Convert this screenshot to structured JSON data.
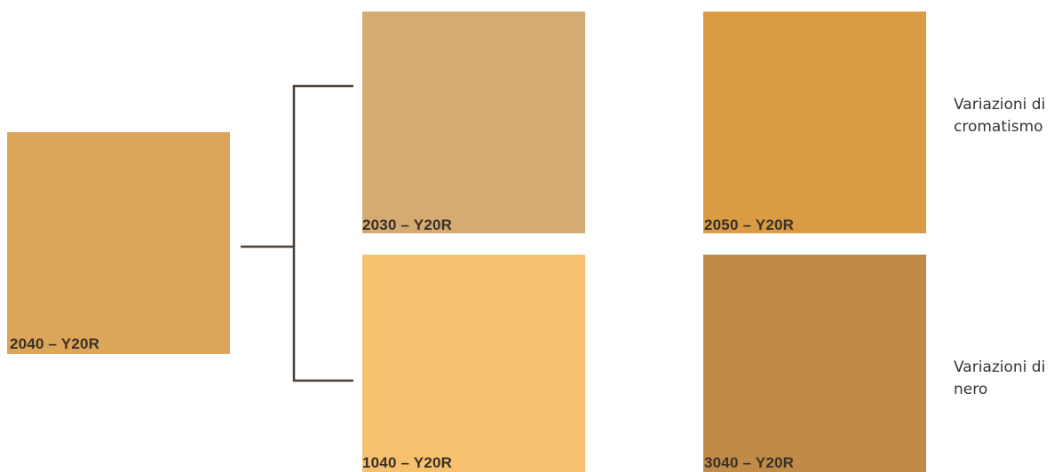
{
  "swatches": {
    "base": {
      "label": "2040 – Y20R",
      "color": "#dca55a"
    },
    "chroma_low": {
      "label": "2030 – Y20R",
      "color": "#d5ab73"
    },
    "chroma_high": {
      "label": "2050 – Y20R",
      "color": "#d99b43"
    },
    "black_low": {
      "label": "1040 – Y20R",
      "color": "#f6c06f"
    },
    "black_high": {
      "label": "3040 – Y20R",
      "color": "#c08a48"
    }
  },
  "notes": {
    "chroma": {
      "line1": "Variazioni di",
      "line2": "cromatismo"
    },
    "black": {
      "line1": "Variazioni di",
      "line2": "nero"
    }
  },
  "colors": {
    "connector": "#4a3f33"
  }
}
